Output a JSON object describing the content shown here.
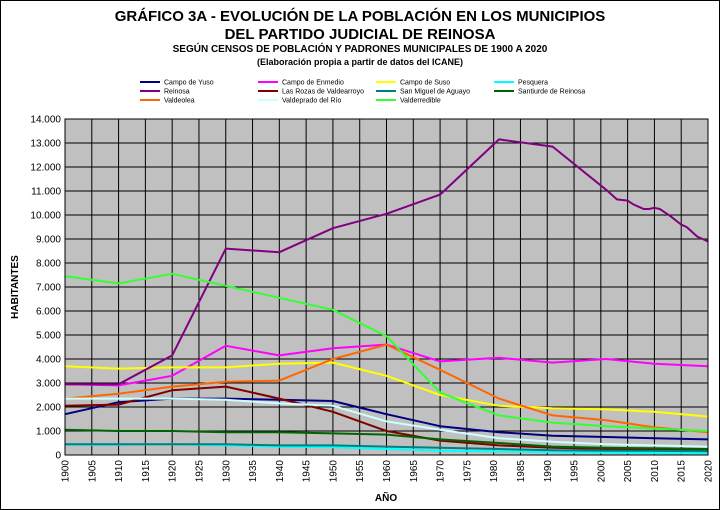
{
  "title_line1": "GRÁFICO 3A - EVOLUCIÓN DE LA POBLACIÓN EN LOS MUNICIPIOS",
  "title_line2": "DEL PARTIDO JUDICIAL DE REINOSA",
  "subtitle": "SEGÚN CENSOS DE POBLACIÓN Y PADRONES MUNICIPALES DE 1900 A 2020",
  "note": "(Elaboración propia a partir de datos del ICANE)",
  "chart_data": {
    "type": "line",
    "xlabel": "AÑO",
    "ylabel": "HABITANTES",
    "xlim": [
      1900,
      2020
    ],
    "ylim": [
      0,
      14000
    ],
    "x_ticks": [
      1900,
      1905,
      1910,
      1915,
      1920,
      1925,
      1930,
      1935,
      1940,
      1945,
      1950,
      1955,
      1960,
      1965,
      1970,
      1975,
      1980,
      1985,
      1990,
      1995,
      2000,
      2005,
      2010,
      2015,
      2020
    ],
    "y_ticks": [
      0,
      1000,
      2000,
      3000,
      4000,
      5000,
      6000,
      7000,
      8000,
      9000,
      10000,
      11000,
      12000,
      13000,
      14000
    ],
    "y_tick_labels": [
      "0",
      "1.000",
      "2.000",
      "3.000",
      "4.000",
      "5.000",
      "6.000",
      "7.000",
      "8.000",
      "9.000",
      "10.000",
      "11.000",
      "12.000",
      "13.000",
      "14.000"
    ],
    "grid": true,
    "plot_background": "#c0c0c0",
    "legend_position": "top",
    "series": [
      {
        "name": "Campo de Yuso",
        "color": "#000080",
        "x": [
          1900,
          1910,
          1920,
          1930,
          1940,
          1950,
          1960,
          1970,
          1981,
          1991,
          2001,
          2010,
          2020
        ],
        "y": [
          1700,
          2200,
          2350,
          2350,
          2300,
          2250,
          1700,
          1200,
          950,
          800,
          750,
          700,
          650
        ]
      },
      {
        "name": "Campo de Enmedio",
        "color": "#ff00ff",
        "x": [
          1900,
          1910,
          1920,
          1930,
          1940,
          1950,
          1960,
          1970,
          1981,
          1991,
          2001,
          2010,
          2020
        ],
        "y": [
          2950,
          2900,
          3300,
          4550,
          4150,
          4450,
          4600,
          3900,
          4050,
          3850,
          4000,
          3800,
          3700
        ]
      },
      {
        "name": "Campo de Suso",
        "color": "#ffff00",
        "x": [
          1900,
          1910,
          1920,
          1930,
          1940,
          1950,
          1960,
          1970,
          1981,
          1991,
          2001,
          2010,
          2020
        ],
        "y": [
          3700,
          3600,
          3650,
          3650,
          3800,
          3850,
          3300,
          2500,
          2050,
          1950,
          1900,
          1800,
          1600
        ]
      },
      {
        "name": "Pesquera",
        "color": "#00ffff",
        "x": [
          1900,
          1910,
          1920,
          1930,
          1940,
          1950,
          1960,
          1970,
          1981,
          1991,
          2001,
          2010,
          2020
        ],
        "y": [
          430,
          430,
          450,
          400,
          350,
          320,
          250,
          180,
          150,
          120,
          100,
          80,
          70
        ]
      },
      {
        "name": "Reinosa",
        "color": "#800080",
        "x": [
          1900,
          1910,
          1920,
          1930,
          1940,
          1950,
          1960,
          1970,
          1981,
          1991,
          2001,
          2003,
          2005,
          2006,
          2008,
          2009,
          2010,
          2011,
          2012,
          2013,
          2015,
          2016,
          2017,
          2018,
          2019,
          2020
        ],
        "y": [
          2950,
          2950,
          4150,
          8600,
          8450,
          9450,
          10050,
          10850,
          13150,
          12850,
          11050,
          10650,
          10600,
          10450,
          10250,
          10250,
          10300,
          10250,
          10100,
          9950,
          9600,
          9500,
          9300,
          9100,
          9000,
          8900
        ]
      },
      {
        "name": "Las Rozas de Valdearroyo",
        "color": "#800000",
        "x": [
          1900,
          1910,
          1920,
          1930,
          1940,
          1950,
          1960,
          1970,
          1981,
          1991,
          2001,
          2010,
          2020
        ],
        "y": [
          2050,
          2100,
          2700,
          2850,
          2350,
          1800,
          1000,
          600,
          400,
          300,
          250,
          250,
          200
        ]
      },
      {
        "name": "San Miguel de Aguayo",
        "color": "#008080",
        "x": [
          1900,
          1910,
          1920,
          1930,
          1940,
          1950,
          1960,
          1970,
          1981,
          1991,
          2001,
          2010,
          2020
        ],
        "y": [
          450,
          450,
          450,
          450,
          400,
          400,
          350,
          300,
          250,
          200,
          180,
          170,
          160
        ]
      },
      {
        "name": "Santiurde de Reinosa",
        "color": "#006400",
        "x": [
          1900,
          1910,
          1920,
          1930,
          1940,
          1950,
          1960,
          1970,
          1981,
          1991,
          2001,
          2010,
          2020
        ],
        "y": [
          1050,
          1000,
          1000,
          950,
          950,
          900,
          850,
          650,
          500,
          350,
          300,
          280,
          250
        ]
      },
      {
        "name": "Valdeolea",
        "color": "#ff6600",
        "x": [
          1900,
          1910,
          1920,
          1930,
          1940,
          1950,
          1960,
          1970,
          1981,
          1991,
          2001,
          2010,
          2020
        ],
        "y": [
          2350,
          2550,
          2850,
          3050,
          3100,
          4000,
          4600,
          3550,
          2350,
          1650,
          1450,
          1150,
          950
        ]
      },
      {
        "name": "Valdeprado del Río",
        "color": "#ccffff",
        "x": [
          1900,
          1910,
          1920,
          1930,
          1940,
          1950,
          1960,
          1970,
          1981,
          1991,
          2001,
          2010,
          2020
        ],
        "y": [
          2350,
          2350,
          2350,
          2300,
          2150,
          2050,
          1400,
          1050,
          700,
          550,
          450,
          400,
          350
        ]
      },
      {
        "name": "Valderredible",
        "color": "#33ff33",
        "x": [
          1900,
          1910,
          1920,
          1930,
          1940,
          1950,
          1960,
          1970,
          1981,
          1991,
          2001,
          2010,
          2020
        ],
        "y": [
          7450,
          7150,
          7550,
          7050,
          6550,
          6050,
          4950,
          2600,
          1650,
          1350,
          1200,
          1100,
          1000
        ]
      }
    ]
  }
}
